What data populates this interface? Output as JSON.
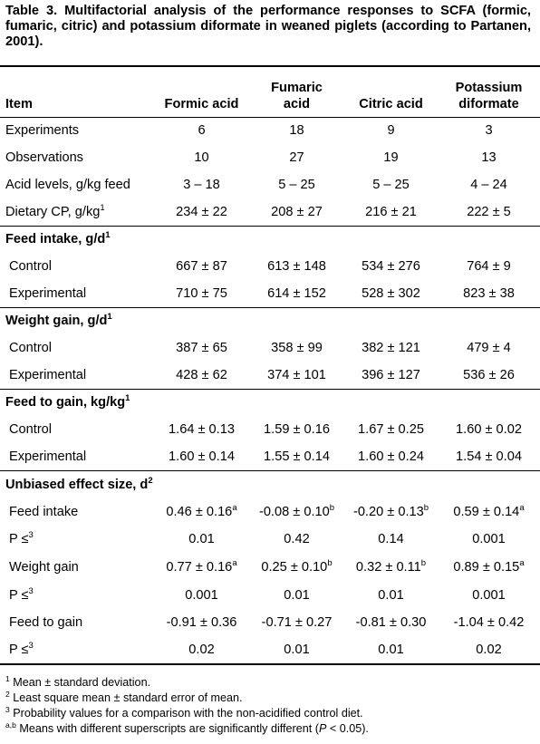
{
  "title": "Table 3. Multifactorial analysis of the performance responses to SCFA (formic, fumaric, citric) and potassium diformate in weaned piglets (according to Partanen, 2001).",
  "table": {
    "header": [
      "Item",
      "Formic acid",
      "Fumaric acid",
      "Citric acid",
      "Potassium diformate"
    ],
    "groups": [
      {
        "rows": [
          {
            "label": "Experiments",
            "cells": [
              "6",
              "18",
              "9",
              "3"
            ]
          },
          {
            "label": "Observations",
            "cells": [
              "10",
              "27",
              "19",
              "13"
            ]
          },
          {
            "label": "Acid levels, g/kg feed",
            "cells": [
              "3 – 18",
              "5 – 25",
              "5 – 25",
              "4 – 24"
            ]
          },
          {
            "label": {
              "text": "Dietary CP, g/kg",
              "sup": "1"
            },
            "cells": [
              "234 ± 22",
              "208 ± 27",
              "216 ± 21",
              "222 ± 5"
            ]
          }
        ]
      },
      {
        "title": {
          "text": "Feed intake,  g/d",
          "sup": "1"
        },
        "rows": [
          {
            "label": "Control",
            "cells": [
              "667 ± 87",
              "613 ± 148",
              "534 ± 276",
              "764 ± 9"
            ]
          },
          {
            "label": "Experimental",
            "cells": [
              "710 ± 75",
              "614 ± 152",
              "528 ± 302",
              "823 ± 38"
            ]
          }
        ]
      },
      {
        "title": {
          "text": "Weight gain, g/d",
          "sup": "1"
        },
        "rows": [
          {
            "label": "Control",
            "cells": [
              "387 ± 65",
              "358 ± 99",
              "382 ± 121",
              "479 ± 4"
            ]
          },
          {
            "label": "Experimental",
            "cells": [
              "428 ± 62",
              "374 ± 101",
              "396 ± 127",
              "536 ± 26"
            ]
          }
        ]
      },
      {
        "title": {
          "text": "Feed to gain, kg/kg",
          "sup": "1"
        },
        "rows": [
          {
            "label": "Control",
            "cells": [
              "1.64 ± 0.13",
              "1.59 ± 0.16",
              "1.67 ± 0.25",
              "1.60 ± 0.02"
            ]
          },
          {
            "label": "Experimental",
            "cells": [
              "1.60 ± 0.14",
              "1.55 ± 0.14",
              "1.60 ± 0.24",
              "1.54 ± 0.04"
            ]
          }
        ]
      },
      {
        "title": {
          "text": "Unbiased effect size, d",
          "sup": "2"
        },
        "rows": [
          {
            "label": "Feed intake",
            "cells": [
              {
                "text": "0.46 ± 0.16",
                "sup": "a"
              },
              {
                "text": "-0.08 ± 0.10",
                "sup": "b"
              },
              {
                "text": "-0.20 ± 0.13",
                "sup": "b"
              },
              {
                "text": "0.59 ± 0.14",
                "sup": "a"
              }
            ]
          },
          {
            "label": {
              "text": "P ≤",
              "sup": "3"
            },
            "cells": [
              "0.01",
              "0.42",
              "0.14",
              "0.001"
            ]
          },
          {
            "label": "Weight gain",
            "cells": [
              {
                "text": "0.77 ± 0.16",
                "sup": "a"
              },
              {
                "text": "0.25 ± 0.10",
                "sup": "b"
              },
              {
                "text": "0.32 ± 0.11",
                "sup": "b"
              },
              {
                "text": "0.89 ± 0.15",
                "sup": "a"
              }
            ]
          },
          {
            "label": {
              "text": "P ≤",
              "sup": "3"
            },
            "cells": [
              "0.001",
              "0.01",
              "0.01",
              "0.001"
            ]
          },
          {
            "label": "Feed to gain",
            "cells": [
              "-0.91 ± 0.36",
              "-0.71 ± 0.27",
              "-0.81 ± 0.30",
              "-1.04 ± 0.42"
            ]
          },
          {
            "label": {
              "text": "P ≤",
              "sup": "3"
            },
            "cells": [
              "0.02",
              "0.01",
              "0.01",
              "0.02"
            ]
          }
        ]
      }
    ]
  },
  "footnotes": [
    {
      "marker": "1",
      "parts": [
        "Mean ± standard deviation."
      ]
    },
    {
      "marker": "2",
      "parts": [
        "Least square mean ± standard error of mean."
      ]
    },
    {
      "marker": "3",
      "parts": [
        "Probability values for a comparison with the non-acidified control diet."
      ]
    },
    {
      "marker": "a,b",
      "parts": [
        "Means with different superscripts are significantly different (",
        "P",
        " < 0.05)."
      ]
    }
  ]
}
